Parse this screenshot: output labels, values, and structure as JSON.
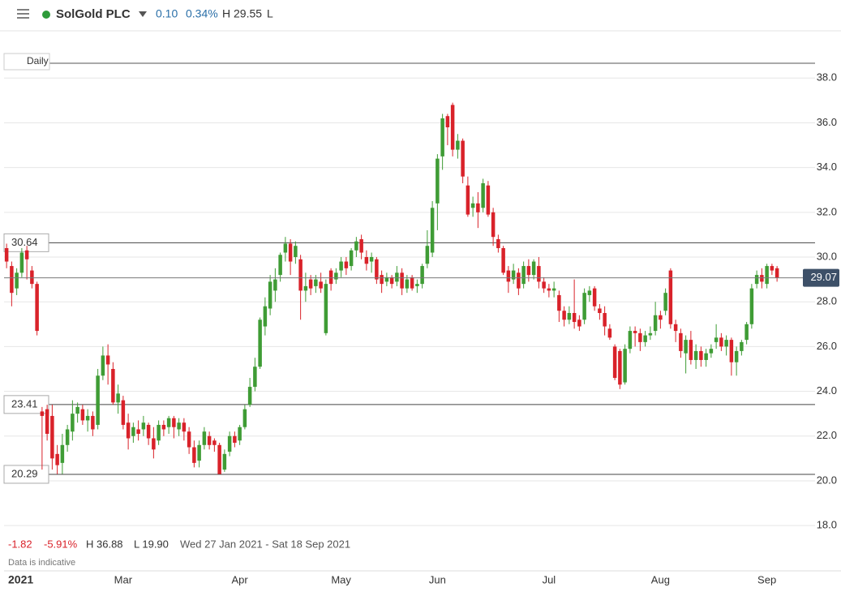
{
  "header": {
    "name": "SolGold PLC",
    "change": "0.10",
    "change_pct": "0.34%",
    "high": "H 29.55",
    "low": "L"
  },
  "interval": "Daily",
  "footer": {
    "change": "-1.82",
    "change_pct": "-5.91%",
    "high": "H 36.88",
    "low": "L 19.90",
    "range": "Wed 27 Jan 2021 - Sat 18 Sep 2021",
    "note": "Data is indicative"
  },
  "chart_data": {
    "type": "candlestick",
    "up_color": "#3f9c35",
    "down_color": "#d9222a",
    "ylim": [
      16.12,
      40.04
    ],
    "yticks": [
      {
        "value": 18,
        "label": "18.0"
      },
      {
        "value": 20,
        "label": "20.0"
      },
      {
        "value": 22,
        "label": "22.0"
      },
      {
        "value": 24,
        "label": "24.0"
      },
      {
        "value": 26,
        "label": "26.0"
      },
      {
        "value": 28,
        "label": "28.0"
      },
      {
        "value": 30,
        "label": "30.0"
      },
      {
        "value": 32,
        "label": "32.0"
      },
      {
        "value": 34,
        "label": "34.0"
      },
      {
        "value": 36,
        "label": "36.0"
      },
      {
        "value": 38,
        "label": "38.0"
      }
    ],
    "grid": true,
    "xticks": [
      {
        "value": 0,
        "label": "2021"
      },
      {
        "value": 23,
        "label": "Mar"
      },
      {
        "value": 46,
        "label": "Apr"
      },
      {
        "value": 66,
        "label": "May"
      },
      {
        "value": 85,
        "label": "Jun"
      },
      {
        "value": 107,
        "label": "Jul"
      },
      {
        "value": 129,
        "label": "Aug"
      },
      {
        "value": 150,
        "label": "Sep"
      }
    ],
    "hlines": [
      30.64,
      23.41,
      20.29
    ],
    "last_price": 29.07,
    "open": [
      30.4,
      29.6,
      28.6,
      29.3,
      30.3,
      29.4,
      28.8,
      23.1,
      23.2,
      22.9,
      21.2,
      20.8,
      21.6,
      22.2,
      23.0,
      23.2,
      22.7,
      22.9,
      22.5,
      24.7,
      25.6,
      25.0,
      23.5,
      23.6,
      22.6,
      22.0,
      22.3,
      22.3,
      22.5,
      21.9,
      21.8,
      22.5,
      22.4,
      22.8,
      22.3,
      22.6,
      22.2,
      21.5,
      20.9,
      21.6,
      22.0,
      21.8,
      21.6,
      20.5,
      21.3,
      22.0,
      21.8,
      22.4,
      23.4,
      24.2,
      25.1,
      26.9,
      27.7,
      28.5,
      29.2,
      30.2,
      30.6,
      30.0,
      29.9,
      28.5,
      29.0,
      28.7,
      28.9,
      26.6,
      29.4,
      29.0,
      29.4,
      29.8,
      29.6,
      30.3,
      30.8,
      30.0,
      29.8,
      29.9,
      29.2,
      28.9,
      29.1,
      28.9,
      29.3,
      28.6,
      29.1,
      28.7,
      28.8,
      29.7,
      30.2,
      32.4,
      34.5,
      36.3,
      36.8,
      34.8,
      35.2,
      33.2,
      32.2,
      32.4,
      32.2,
      33.2,
      32.0,
      30.8,
      30.4,
      29.4,
      29.0,
      29.3,
      28.8,
      29.6,
      29.2,
      29.6,
      28.9,
      28.6,
      28.5,
      28.3,
      27.6,
      27.2,
      27.5,
      27.2,
      27.2,
      28.3,
      28.6,
      27.7,
      27.5,
      26.8,
      26.0,
      25.8,
      24.4,
      25.9,
      26.7,
      26.6,
      26.2,
      26.5,
      26.7,
      27.4,
      27.6,
      29.4,
      27.0,
      26.6,
      25.7,
      26.3,
      25.4,
      25.8,
      25.4,
      25.7,
      26.2,
      26.4,
      26.0,
      26.3,
      25.3,
      25.8,
      26.3,
      27.0,
      28.8,
      29.2,
      28.8,
      29.6,
      29.5
    ],
    "high": [
      30.6,
      29.8,
      29.5,
      30.4,
      30.5,
      29.6,
      28.9,
      23.3,
      23.4,
      23.4,
      21.6,
      22.1,
      22.5,
      23.6,
      23.5,
      23.4,
      23.2,
      23.1,
      25.0,
      26.0,
      26.1,
      25.3,
      24.3,
      23.8,
      23.0,
      22.6,
      22.7,
      22.9,
      22.6,
      22.4,
      22.7,
      22.7,
      22.9,
      22.9,
      22.8,
      22.8,
      22.4,
      21.8,
      21.8,
      22.4,
      22.2,
      21.9,
      21.7,
      21.4,
      22.2,
      22.2,
      22.5,
      23.4,
      24.6,
      25.5,
      27.3,
      28.2,
      29.2,
      29.5,
      30.2,
      30.9,
      30.8,
      30.7,
      30.1,
      29.3,
      29.2,
      29.2,
      29.3,
      29.0,
      29.5,
      29.5,
      30.0,
      30.0,
      30.4,
      30.9,
      31.0,
      30.3,
      30.2,
      30.0,
      29.4,
      29.3,
      29.2,
      29.6,
      29.5,
      29.2,
      29.2,
      29.0,
      29.7,
      31.2,
      32.5,
      34.6,
      36.4,
      36.4,
      36.9,
      35.5,
      35.3,
      33.6,
      32.7,
      32.9,
      33.5,
      33.4,
      32.2,
      31.0,
      30.5,
      29.6,
      29.7,
      29.5,
      29.8,
      29.9,
      29.9,
      30.0,
      29.1,
      28.8,
      28.9,
      28.5,
      27.8,
      27.8,
      29.0,
      27.4,
      28.6,
      28.7,
      28.7,
      27.9,
      27.8,
      27.0,
      26.1,
      25.9,
      26.1,
      26.9,
      26.9,
      26.8,
      26.7,
      26.9,
      28.0,
      27.6,
      28.6,
      29.5,
      27.2,
      26.8,
      26.5,
      26.7,
      26.1,
      26.0,
      25.9,
      26.1,
      27.0,
      26.6,
      26.5,
      26.4,
      26.0,
      26.3,
      27.1,
      28.8,
      29.4,
      29.5,
      29.7,
      29.7,
      29.6
    ],
    "low": [
      29.5,
      27.8,
      28.3,
      29.1,
      29.0,
      28.6,
      26.5,
      20.5,
      21.8,
      20.5,
      20.3,
      20.3,
      21.3,
      21.8,
      22.6,
      22.5,
      22.2,
      22.0,
      22.3,
      24.5,
      24.3,
      23.4,
      23.0,
      22.3,
      21.4,
      21.7,
      21.8,
      22.0,
      21.6,
      21.0,
      21.6,
      22.0,
      22.1,
      21.9,
      22.0,
      21.8,
      21.2,
      20.6,
      20.6,
      21.4,
      21.4,
      21.3,
      20.3,
      20.4,
      21.1,
      21.5,
      21.6,
      22.3,
      23.3,
      24.0,
      25.0,
      26.5,
      27.4,
      28.0,
      28.9,
      29.8,
      29.2,
      29.7,
      27.2,
      28.0,
      28.3,
      28.4,
      28.4,
      26.5,
      28.5,
      28.8,
      29.1,
      29.2,
      29.4,
      30.0,
      29.9,
      29.4,
      29.3,
      28.8,
      28.4,
      28.7,
      28.6,
      28.7,
      28.3,
      28.4,
      28.5,
      28.4,
      28.6,
      29.5,
      30.0,
      31.2,
      33.9,
      35.0,
      34.5,
      34.4,
      33.3,
      31.8,
      31.8,
      31.3,
      32.0,
      31.8,
      30.5,
      30.2,
      29.2,
      28.4,
      28.8,
      28.3,
      28.6,
      28.9,
      29.0,
      28.6,
      28.4,
      28.2,
      28.2,
      27.1,
      26.9,
      27.0,
      26.8,
      26.7,
      27.0,
      28.0,
      27.6,
      27.2,
      26.5,
      26.3,
      24.5,
      24.1,
      24.3,
      25.7,
      26.0,
      25.8,
      26.0,
      26.3,
      26.5,
      26.8,
      27.4,
      26.8,
      26.2,
      25.5,
      24.8,
      25.2,
      25.0,
      25.1,
      25.1,
      25.5,
      25.9,
      25.8,
      25.6,
      24.7,
      24.7,
      25.6,
      26.1,
      26.8,
      28.6,
      28.6,
      28.6,
      29.2,
      28.9
    ],
    "close": [
      29.8,
      28.4,
      29.3,
      30.2,
      29.9,
      28.8,
      26.7,
      22.9,
      22.1,
      21.0,
      20.7,
      21.6,
      22.3,
      23.0,
      23.3,
      22.7,
      22.9,
      22.3,
      24.7,
      25.6,
      25.2,
      23.5,
      23.9,
      22.5,
      21.9,
      22.4,
      22.1,
      22.6,
      21.9,
      21.4,
      22.5,
      22.3,
      22.8,
      22.4,
      22.6,
      22.2,
      21.5,
      20.8,
      21.6,
      22.2,
      21.6,
      21.6,
      20.3,
      21.2,
      22.0,
      21.7,
      22.4,
      23.2,
      24.2,
      25.1,
      27.2,
      27.8,
      28.9,
      29.0,
      30.1,
      30.6,
      29.8,
      30.5,
      28.5,
      28.7,
      28.6,
      29.0,
      28.6,
      28.8,
      28.8,
      29.3,
      29.8,
      29.5,
      30.3,
      30.7,
      30.2,
      29.7,
      30.0,
      29.0,
      28.8,
      29.1,
      28.8,
      29.3,
      28.6,
      29.0,
      28.6,
      28.8,
      29.6,
      30.5,
      32.2,
      34.4,
      36.2,
      35.8,
      34.8,
      35.2,
      33.6,
      31.9,
      32.4,
      32.0,
      33.3,
      31.9,
      30.9,
      30.4,
      29.3,
      28.9,
      29.4,
      28.6,
      29.6,
      29.2,
      29.8,
      28.9,
      28.6,
      28.5,
      28.6,
      27.6,
      27.2,
      27.5,
      27.1,
      26.9,
      28.4,
      28.5,
      27.8,
      27.5,
      26.9,
      26.4,
      24.6,
      24.3,
      25.9,
      26.7,
      26.6,
      26.2,
      26.5,
      26.6,
      27.4,
      27.2,
      28.4,
      27.0,
      26.7,
      25.8,
      26.3,
      25.4,
      25.8,
      25.4,
      25.7,
      25.9,
      26.4,
      26.0,
      26.3,
      25.3,
      25.8,
      26.2,
      27.0,
      28.6,
      29.2,
      28.9,
      29.6,
      29.4,
      29.07
    ]
  }
}
